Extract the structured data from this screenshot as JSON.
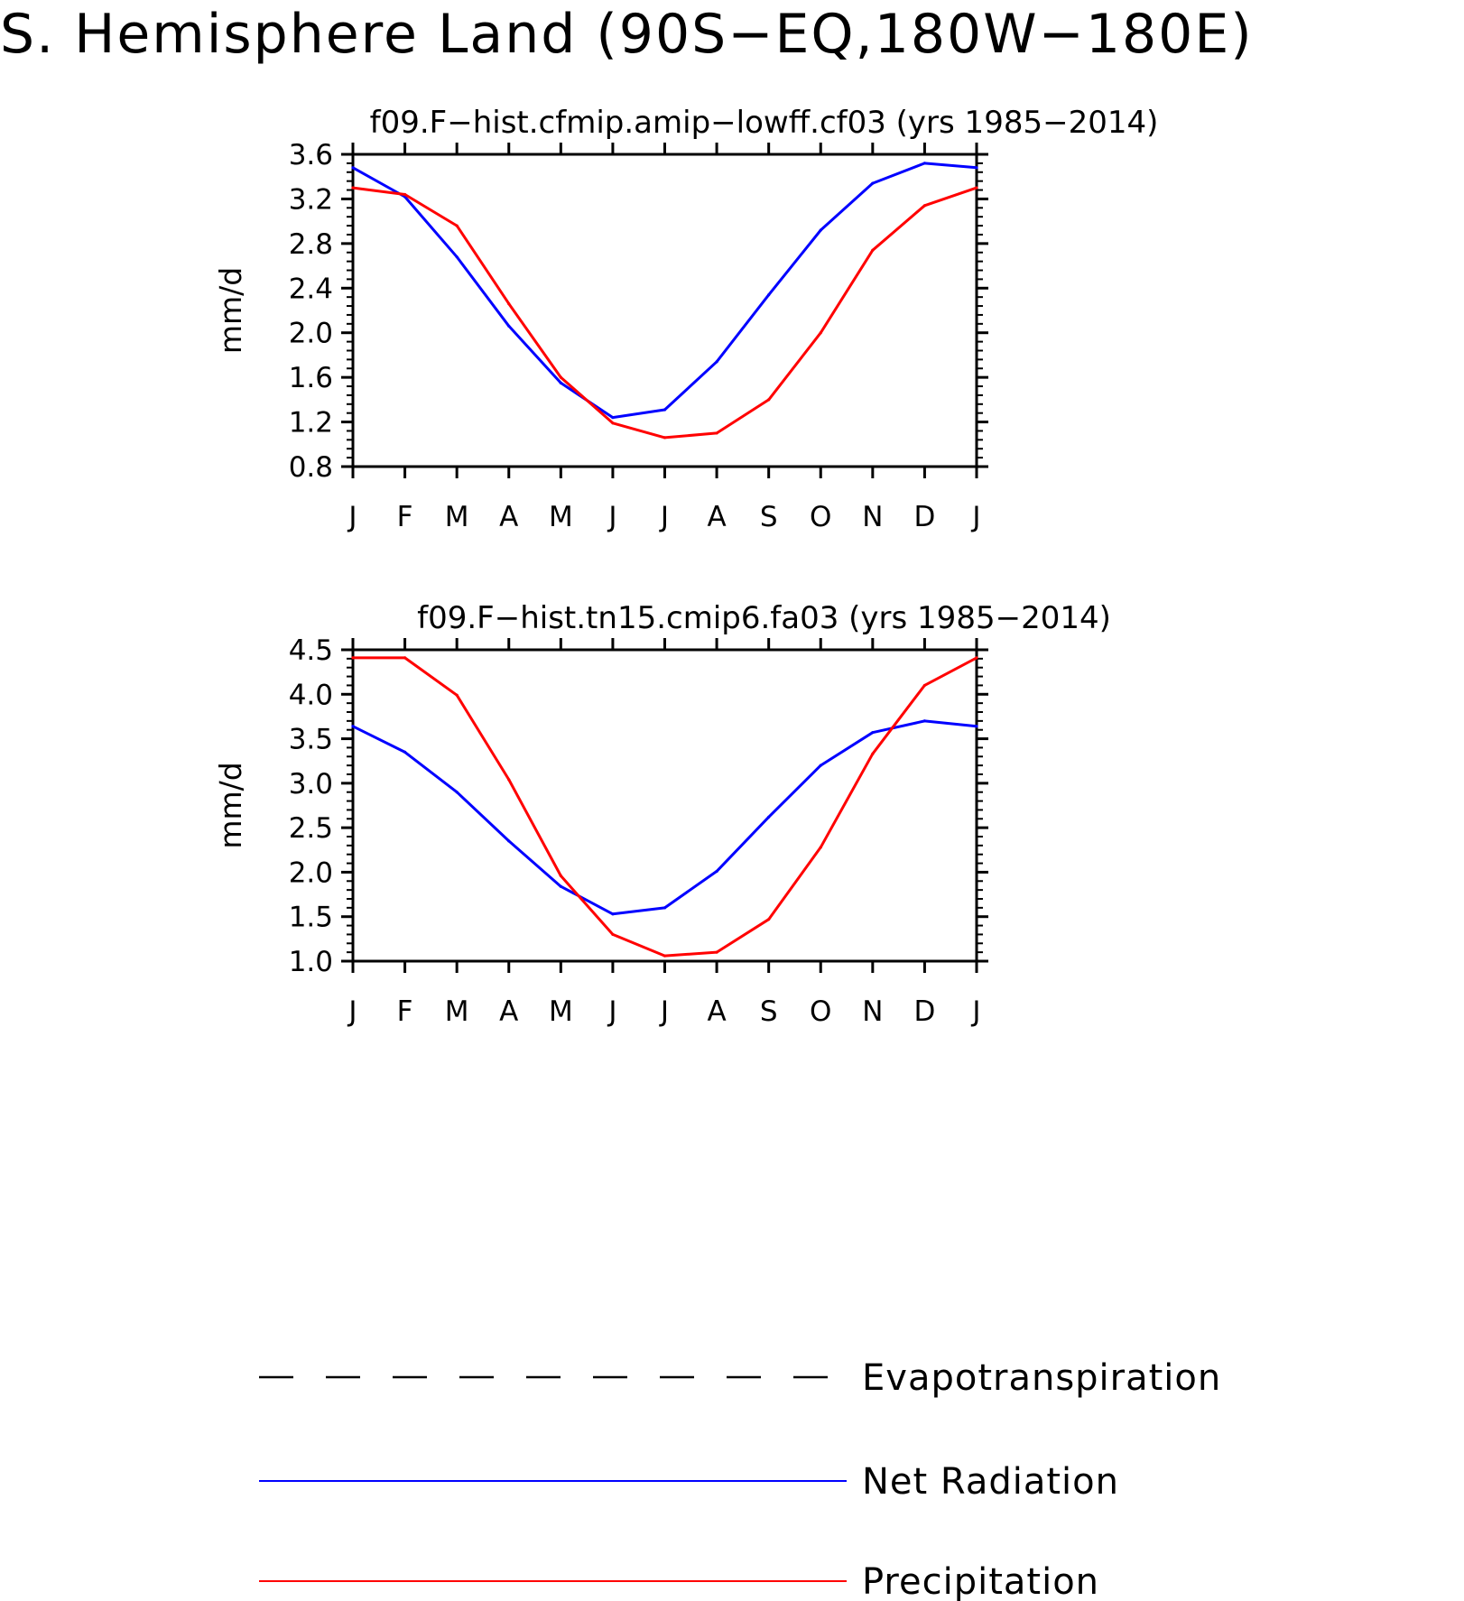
{
  "title": "S. Hemisphere Land (90S−EQ,180W−180E)",
  "legend": [
    {
      "name": "Evapotranspiration",
      "color": "#000000",
      "style": "dashed"
    },
    {
      "name": "Net Radiation",
      "color": "#0000ff",
      "style": "solid"
    },
    {
      "name": "Precipitation",
      "color": "#ff0000",
      "style": "solid"
    }
  ],
  "chart_data": [
    {
      "type": "line",
      "title": "f09.F−hist.cfmip.amip−lowff.cf03 (yrs 1985−2014)",
      "ylabel": "mm/d",
      "ylim": [
        0.8,
        3.6
      ],
      "yticks": [
        "0.8",
        "1.2",
        "1.6",
        "2.0",
        "2.4",
        "2.8",
        "3.2",
        "3.6"
      ],
      "categories": [
        "J",
        "F",
        "M",
        "A",
        "M",
        "J",
        "J",
        "A",
        "S",
        "O",
        "N",
        "D",
        "J"
      ],
      "series": [
        {
          "name": "Net Radiation",
          "color": "#0000ff",
          "values": [
            3.48,
            3.22,
            2.68,
            2.06,
            1.55,
            1.24,
            1.31,
            1.74,
            2.34,
            2.92,
            3.34,
            3.52,
            3.48
          ]
        },
        {
          "name": "Precipitation",
          "color": "#ff0000",
          "values": [
            3.3,
            3.24,
            2.96,
            2.26,
            1.6,
            1.19,
            1.06,
            1.1,
            1.4,
            2.0,
            2.74,
            3.14,
            3.3
          ]
        }
      ]
    },
    {
      "type": "line",
      "title": "f09.F−hist.tn15.cmip6.fa03 (yrs 1985−2014)",
      "ylabel": "mm/d",
      "ylim": [
        1.0,
        4.5
      ],
      "yticks": [
        "1.0",
        "1.5",
        "2.0",
        "2.5",
        "3.0",
        "3.5",
        "4.0",
        "4.5"
      ],
      "categories": [
        "J",
        "F",
        "M",
        "A",
        "M",
        "J",
        "J",
        "A",
        "S",
        "O",
        "N",
        "D",
        "J"
      ],
      "series": [
        {
          "name": "Net Radiation",
          "color": "#0000ff",
          "values": [
            3.64,
            3.35,
            2.9,
            2.35,
            1.84,
            1.53,
            1.6,
            2.01,
            2.62,
            3.2,
            3.57,
            3.7,
            3.64
          ]
        },
        {
          "name": "Precipitation",
          "color": "#ff0000",
          "values": [
            4.41,
            4.41,
            3.99,
            3.04,
            1.96,
            1.3,
            1.06,
            1.1,
            1.47,
            2.28,
            3.33,
            4.1,
            4.41
          ]
        }
      ]
    }
  ]
}
